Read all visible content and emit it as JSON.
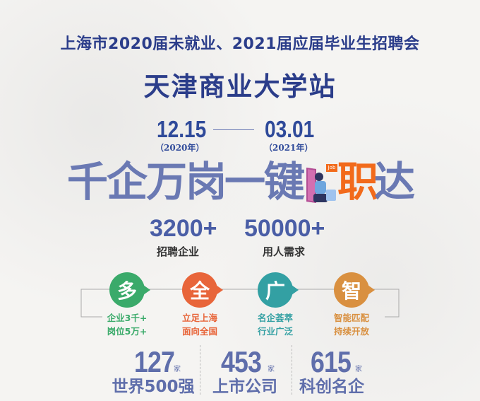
{
  "header": {
    "line1": "上海市2020届未就业、2021届应届毕业生招聘会",
    "line2": "天津商业大学站"
  },
  "dates": {
    "start": "12.15",
    "start_year": "（2020年）",
    "end": "03.01",
    "end_year": "（2021年）"
  },
  "slogan": {
    "part1": "千企万岗",
    "part2": "一键",
    "part3": "职",
    "part4": "达",
    "badge": "Job"
  },
  "totals": [
    {
      "value": "3200+",
      "label": "招聘企业"
    },
    {
      "value": "50000+",
      "label": "用人需求"
    }
  ],
  "features": [
    {
      "char": "多",
      "line1": "企业3千+",
      "line2": "岗位5万+",
      "color": "#3aaa6a"
    },
    {
      "char": "全",
      "line1": "立足上海",
      "line2": "面向全国",
      "color": "#e8653a"
    },
    {
      "char": "广",
      "line1": "名企荟萃",
      "line2": "行业广泛",
      "color": "#33a0a3"
    },
    {
      "char": "智",
      "line1": "智能匹配",
      "line2": "持续开放",
      "color": "#d99040"
    }
  ],
  "stats": [
    {
      "value": "127",
      "unit": "家",
      "label": "世界500强"
    },
    {
      "value": "453",
      "unit": "家",
      "label": "上市公司"
    },
    {
      "value": "615",
      "unit": "家",
      "label": "科创名企"
    }
  ]
}
